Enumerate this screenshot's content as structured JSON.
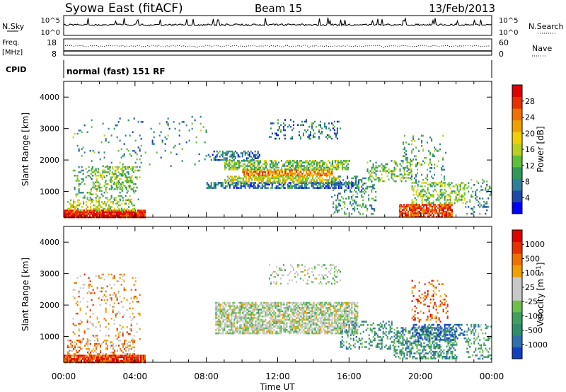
{
  "header": {
    "station": "Syowa East (fitACF)",
    "beam": "Beam 15",
    "date": "13/Feb/2013"
  },
  "strips": {
    "nsky_label": "N.Sky",
    "nsky_ticks": [
      "10^5",
      "10^0"
    ],
    "nsearch_label": "N.Search",
    "nsearch_ticks": [
      "10^5",
      "10^0"
    ],
    "freq_label": "Freq.",
    "freq_unit": "[MHz]",
    "freq_ticks": [
      "18",
      "8"
    ],
    "nave_label": "Nave",
    "nave_ticks": [
      "60",
      "0"
    ],
    "cpid_label": "CPID",
    "cpid_value": "normal (fast) 151 RF"
  },
  "time_axis": {
    "label": "Time UT",
    "ticks": [
      "00:00",
      "04:00",
      "08:00",
      "12:00",
      "16:00",
      "20:00",
      "00:00"
    ]
  },
  "chart_data": [
    {
      "type": "heatmap",
      "name": "power-panel",
      "ylabel": "Slant Range [km]",
      "xlim": [
        0,
        24
      ],
      "ylim": [
        180,
        4500
      ],
      "yticks": [
        "1000",
        "2000",
        "3000",
        "4000"
      ],
      "ytick_values": [
        1000,
        2000,
        3000,
        4000
      ],
      "colorbar": {
        "label": "Power [dB]",
        "ticks": [
          "4",
          "8",
          "12",
          "16",
          "20",
          "24",
          "28"
        ],
        "colors": [
          "#0000ff",
          "#1f48a8",
          "#2f7f9a",
          "#2e9a5a",
          "#5fbf3a",
          "#b8d020",
          "#f0d000",
          "#f0a000",
          "#f07000",
          "#e83000",
          "#e00000"
        ]
      },
      "regions": [
        {
          "t0": 0.0,
          "t1": 4.6,
          "r0": 180,
          "r1": 420,
          "level": 0.92,
          "density": 0.95
        },
        {
          "t0": 0.2,
          "t1": 4.0,
          "r0": 420,
          "r1": 750,
          "level": 0.5,
          "density": 0.4
        },
        {
          "t0": 0.5,
          "t1": 4.3,
          "r0": 750,
          "r1": 1800,
          "level": 0.35,
          "density": 0.22
        },
        {
          "t0": 1.5,
          "t1": 4.0,
          "r0": 1000,
          "r1": 1800,
          "level": 0.45,
          "density": 0.3
        },
        {
          "t0": 8.0,
          "t1": 16.5,
          "r0": 1100,
          "r1": 1300,
          "level": 0.2,
          "density": 0.65
        },
        {
          "t0": 9.0,
          "t1": 15.5,
          "r0": 1300,
          "r1": 1500,
          "level": 0.55,
          "density": 0.7
        },
        {
          "t0": 10.0,
          "t1": 15.0,
          "r0": 1500,
          "r1": 1700,
          "level": 0.72,
          "density": 0.75
        },
        {
          "t0": 9.0,
          "t1": 16.0,
          "r0": 1700,
          "r1": 2000,
          "level": 0.42,
          "density": 0.6
        },
        {
          "t0": 8.0,
          "t1": 11.0,
          "r0": 2000,
          "r1": 2300,
          "level": 0.22,
          "density": 0.45
        },
        {
          "t0": 11.5,
          "t1": 15.5,
          "r0": 2700,
          "r1": 3300,
          "level": 0.22,
          "density": 0.2
        },
        {
          "t0": 15.0,
          "t1": 17.5,
          "r0": 300,
          "r1": 1500,
          "level": 0.3,
          "density": 0.25
        },
        {
          "t0": 17.0,
          "t1": 19.5,
          "r0": 1300,
          "r1": 2000,
          "level": 0.4,
          "density": 0.3
        },
        {
          "t0": 18.8,
          "t1": 21.8,
          "r0": 180,
          "r1": 600,
          "level": 0.85,
          "density": 0.85
        },
        {
          "t0": 19.5,
          "t1": 22.5,
          "r0": 600,
          "r1": 1300,
          "level": 0.45,
          "density": 0.45
        },
        {
          "t0": 19.0,
          "t1": 21.5,
          "r0": 1300,
          "r1": 2800,
          "level": 0.35,
          "density": 0.18
        },
        {
          "t0": 22.5,
          "t1": 24.0,
          "r0": 300,
          "r1": 1400,
          "level": 0.3,
          "density": 0.2
        },
        {
          "t0": 0.5,
          "t1": 8.0,
          "r0": 1800,
          "r1": 3400,
          "level": 0.3,
          "density": 0.05
        }
      ]
    },
    {
      "type": "heatmap",
      "name": "velocity-panel",
      "ylabel": "Slant Range [km]",
      "xlim": [
        0,
        24
      ],
      "ylim": [
        180,
        4500
      ],
      "yticks": [
        "1000",
        "2000",
        "3000",
        "4000"
      ],
      "ytick_values": [
        1000,
        2000,
        3000,
        4000
      ],
      "colorbar": {
        "label": "Velocity [m s",
        "label_sup": "-1",
        "label_end": "]",
        "ticks": [
          "1000",
          "500",
          "100",
          "25",
          "-25",
          "-100",
          "-500",
          "-1000"
        ],
        "colors": [
          "#1040c0",
          "#2f6fb0",
          "#2e8f6a",
          "#3fa060",
          "#6cc04a",
          "#c8c8c8",
          "#c8c8c8",
          "#f0a000",
          "#f07000",
          "#e83000",
          "#e00000"
        ]
      },
      "regions": [
        {
          "t0": 0.0,
          "t1": 4.6,
          "r0": 180,
          "r1": 420,
          "level": 0.85,
          "density": 0.95
        },
        {
          "t0": 0.2,
          "t1": 4.0,
          "r0": 420,
          "r1": 900,
          "level": 0.7,
          "density": 0.4
        },
        {
          "t0": 0.5,
          "t1": 4.3,
          "r0": 900,
          "r1": 3000,
          "level": 0.72,
          "density": 0.12
        },
        {
          "t0": 8.5,
          "t1": 16.5,
          "r0": 1100,
          "r1": 2100,
          "level": 0.5,
          "density": 0.7
        },
        {
          "t0": 11.5,
          "t1": 15.5,
          "r0": 2700,
          "r1": 3300,
          "level": 0.5,
          "density": 0.22
        },
        {
          "t0": 15.5,
          "t1": 18.5,
          "r0": 600,
          "r1": 1500,
          "level": 0.25,
          "density": 0.3
        },
        {
          "t0": 18.5,
          "t1": 22.0,
          "r0": 300,
          "r1": 1300,
          "level": 0.25,
          "density": 0.5
        },
        {
          "t0": 19.5,
          "t1": 22.5,
          "r0": 900,
          "r1": 1400,
          "level": 0.05,
          "density": 0.35
        },
        {
          "t0": 19.5,
          "t1": 21.5,
          "r0": 1500,
          "r1": 2800,
          "level": 0.8,
          "density": 0.2
        },
        {
          "t0": 22.5,
          "t1": 24.0,
          "r0": 300,
          "r1": 1400,
          "level": 0.3,
          "density": 0.2
        }
      ]
    }
  ]
}
